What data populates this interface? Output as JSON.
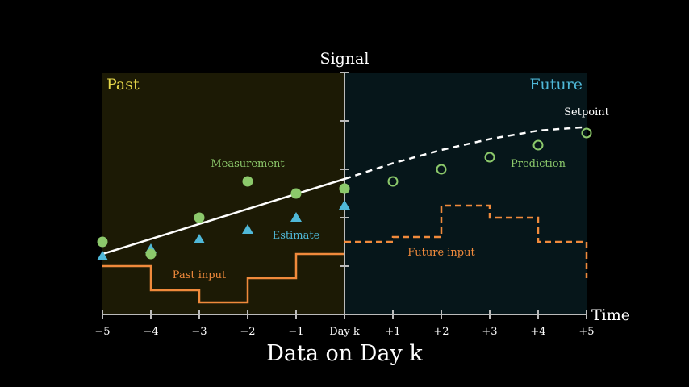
{
  "labels": {
    "y_axis": "Signal",
    "x_axis": "Time",
    "past_region": "Past",
    "future_region": "Future",
    "measurement": "Measurement",
    "estimate": "Estimate",
    "prediction": "Prediction",
    "setpoint": "Setpoint",
    "past_input": "Past input",
    "future_input": "Future input",
    "caption": "Data on Day k"
  },
  "colors": {
    "background": "#000000",
    "past_region": "#1c1a05",
    "future_region": "#06161a",
    "past_title": "#e6d84a",
    "future_title": "#4fb8d8",
    "measurement": "#8cc96b",
    "estimate": "#4fb8d8",
    "input": "#f08a3c",
    "line": "#ffffff",
    "axis": "#bbbbbb"
  },
  "chart_data": {
    "type": "line",
    "x_ticks": [
      {
        "value": -5,
        "label": "−5"
      },
      {
        "value": -4,
        "label": "−4"
      },
      {
        "value": -3,
        "label": "−3"
      },
      {
        "value": -2,
        "label": "−2"
      },
      {
        "value": -1,
        "label": "−1"
      },
      {
        "value": 0,
        "label": "Day k"
      },
      {
        "value": 1,
        "label": "+1"
      },
      {
        "value": 2,
        "label": "+2"
      },
      {
        "value": 3,
        "label": "+3"
      },
      {
        "value": 4,
        "label": "+4"
      },
      {
        "value": 5,
        "label": "+5"
      }
    ],
    "xlim": [
      -5,
      5
    ],
    "ylim": [
      0,
      10
    ],
    "y_ticks": [
      2,
      4,
      6,
      8,
      10
    ],
    "measurements": [
      {
        "x": -5,
        "y": 3.0
      },
      {
        "x": -4,
        "y": 2.5
      },
      {
        "x": -3,
        "y": 4.0
      },
      {
        "x": -2,
        "y": 5.5
      },
      {
        "x": -1,
        "y": 5.0
      },
      {
        "x": 0,
        "y": 5.2
      }
    ],
    "estimates": [
      {
        "x": -5,
        "y": 2.4
      },
      {
        "x": -4,
        "y": 2.7
      },
      {
        "x": -3,
        "y": 3.1
      },
      {
        "x": -2,
        "y": 3.5
      },
      {
        "x": -1,
        "y": 4.0
      },
      {
        "x": 0,
        "y": 4.5
      }
    ],
    "trend_past": [
      {
        "x": -5.0,
        "y": 2.5
      },
      {
        "x": 0.0,
        "y": 5.6
      }
    ],
    "trend_future": [
      {
        "x": 0.0,
        "y": 5.6
      },
      {
        "x": 1.0,
        "y": 6.25
      },
      {
        "x": 2.0,
        "y": 6.8
      },
      {
        "x": 3.0,
        "y": 7.25
      },
      {
        "x": 4.0,
        "y": 7.6
      },
      {
        "x": 5.0,
        "y": 7.75
      }
    ],
    "predictions": [
      {
        "x": 0,
        "y": 5.2
      },
      {
        "x": 1,
        "y": 5.5
      },
      {
        "x": 2,
        "y": 6.0
      },
      {
        "x": 3,
        "y": 6.5
      },
      {
        "x": 4,
        "y": 7.0
      },
      {
        "x": 5,
        "y": 7.5
      }
    ],
    "past_input": [
      {
        "x0": -5,
        "x1": -4,
        "y": 2.0
      },
      {
        "x0": -4,
        "x1": -3,
        "y": 1.0
      },
      {
        "x0": -3,
        "x1": -2,
        "y": 0.5
      },
      {
        "x0": -2,
        "x1": -1,
        "y": 1.5
      },
      {
        "x0": -1,
        "x1": 0,
        "y": 2.5
      }
    ],
    "future_input": [
      {
        "x0": 0,
        "x1": 1,
        "y": 3.0
      },
      {
        "x0": 1,
        "x1": 2,
        "y": 3.2
      },
      {
        "x0": 2,
        "x1": 3,
        "y": 4.5
      },
      {
        "x0": 3,
        "x1": 4,
        "y": 4.0
      },
      {
        "x0": 4,
        "x1": 5,
        "y": 3.0
      }
    ],
    "future_input_tail_y": 1.5
  }
}
